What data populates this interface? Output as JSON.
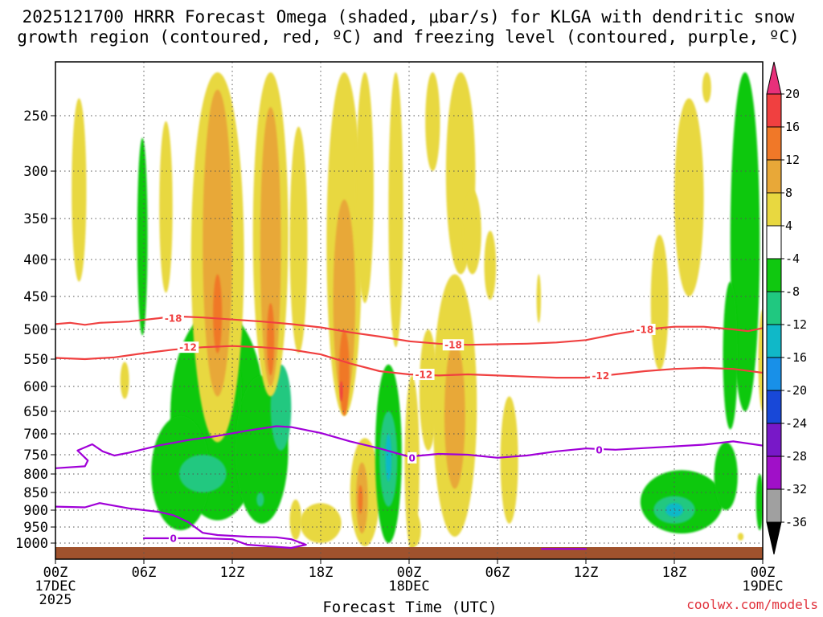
{
  "chart_data": {
    "type": "heatmap",
    "title_line1": "2025121700 HRRR Forecast Omega (shaded, μbar/s) for KLGA with dendritic snow",
    "title_line2": "growth region (contoured, red, ºC) and freezing level (contoured, purple, ºC)",
    "xlabel": "Forecast Time (UTC)",
    "credit": "coolwx.com/models",
    "x_range_hours": [
      0,
      48
    ],
    "y_range_hpa": [
      1030,
      200
    ],
    "x_ticks": [
      {
        "h": 0,
        "l1": "00Z",
        "l2": "17DEC",
        "l3": "2025"
      },
      {
        "h": 6,
        "l1": "06Z",
        "l2": "",
        "l3": ""
      },
      {
        "h": 12,
        "l1": "12Z",
        "l2": "",
        "l3": ""
      },
      {
        "h": 18,
        "l1": "18Z",
        "l2": "",
        "l3": ""
      },
      {
        "h": 24,
        "l1": "00Z",
        "l2": "18DEC",
        "l3": ""
      },
      {
        "h": 30,
        "l1": "06Z",
        "l2": "",
        "l3": ""
      },
      {
        "h": 36,
        "l1": "12Z",
        "l2": "",
        "l3": ""
      },
      {
        "h": 42,
        "l1": "18Z",
        "l2": "",
        "l3": ""
      },
      {
        "h": 48,
        "l1": "00Z",
        "l2": "19DEC",
        "l3": ""
      }
    ],
    "y_ticks": [
      {
        "p": 250,
        "label": "250"
      },
      {
        "p": 300,
        "label": "300"
      },
      {
        "p": 350,
        "label": "350"
      },
      {
        "p": 400,
        "label": "400"
      },
      {
        "p": 450,
        "label": "450"
      },
      {
        "p": 500,
        "label": "500"
      },
      {
        "p": 550,
        "label": "550"
      },
      {
        "p": 600,
        "label": "600"
      },
      {
        "p": 650,
        "label": "650"
      },
      {
        "p": 700,
        "label": "700"
      },
      {
        "p": 750,
        "label": "750"
      },
      {
        "p": 800,
        "label": "800"
      },
      {
        "p": 850,
        "label": "850"
      },
      {
        "p": 900,
        "label": "900"
      },
      {
        "p": 950,
        "label": "950"
      },
      {
        "p": 1000,
        "label": "1000"
      }
    ],
    "colorbar": [
      {
        "label": "20",
        "color": "#e8307a"
      },
      {
        "label": "16",
        "color": "#f04040"
      },
      {
        "label": "12",
        "color": "#f07828"
      },
      {
        "label": "8",
        "color": "#e8a838"
      },
      {
        "label": "4",
        "color": "#e8d840"
      },
      {
        "label": "-4",
        "color": "#ffffff"
      },
      {
        "label": "-8",
        "color": "#10c810"
      },
      {
        "label": "-12",
        "color": "#20c880"
      },
      {
        "label": "-16",
        "color": "#10b8c8"
      },
      {
        "label": "-20",
        "color": "#1890e8"
      },
      {
        "label": "-24",
        "color": "#1848d8"
      },
      {
        "label": "-28",
        "color": "#7818c8"
      },
      {
        "label": "-32",
        "color": "#a010c8"
      },
      {
        "label": "-36",
        "color": "#a0a0a0"
      },
      {
        "label": "",
        "color": "#000000"
      }
    ],
    "contours": [
      {
        "name": "-18C isotherm",
        "value": "-18",
        "color": "#f04040",
        "points": [
          [
            0,
            492
          ],
          [
            1,
            490
          ],
          [
            2,
            493
          ],
          [
            3,
            490
          ],
          [
            5,
            488
          ],
          [
            7,
            483
          ],
          [
            8,
            480
          ],
          [
            10,
            482
          ],
          [
            12,
            485
          ],
          [
            14,
            488
          ],
          [
            16,
            492
          ],
          [
            18,
            497
          ],
          [
            20,
            505
          ],
          [
            22,
            512
          ],
          [
            24,
            520
          ],
          [
            26,
            524
          ],
          [
            28,
            526
          ],
          [
            30,
            525
          ],
          [
            32,
            524
          ],
          [
            34,
            522
          ],
          [
            36,
            518
          ],
          [
            38,
            508
          ],
          [
            40,
            500
          ],
          [
            42,
            496
          ],
          [
            44,
            496
          ],
          [
            46,
            500
          ],
          [
            47,
            503
          ],
          [
            48,
            498
          ]
        ],
        "labels": [
          [
            8,
            483
          ],
          [
            27,
            526
          ],
          [
            40,
            500
          ]
        ]
      },
      {
        "name": "-12C isotherm",
        "value": "-12",
        "color": "#f04040",
        "points": [
          [
            0,
            548
          ],
          [
            2,
            550
          ],
          [
            4,
            547
          ],
          [
            6,
            540
          ],
          [
            8,
            534
          ],
          [
            10,
            530
          ],
          [
            12,
            528
          ],
          [
            14,
            530
          ],
          [
            16,
            534
          ],
          [
            18,
            542
          ],
          [
            20,
            558
          ],
          [
            22,
            572
          ],
          [
            24,
            578
          ],
          [
            26,
            580
          ],
          [
            28,
            578
          ],
          [
            30,
            580
          ],
          [
            32,
            582
          ],
          [
            34,
            584
          ],
          [
            36,
            584
          ],
          [
            38,
            578
          ],
          [
            40,
            572
          ],
          [
            42,
            568
          ],
          [
            44,
            566
          ],
          [
            46,
            568
          ],
          [
            48,
            575
          ]
        ],
        "labels": [
          [
            9,
            530
          ],
          [
            25,
            578
          ],
          [
            37,
            580
          ]
        ]
      },
      {
        "name": "0C freezing level",
        "value": "0",
        "color": "#a000d8",
        "points": [
          [
            0,
            785
          ],
          [
            2,
            780
          ],
          [
            2.2,
            765
          ],
          [
            1.5,
            740
          ],
          [
            2.5,
            725
          ],
          [
            3.2,
            742
          ],
          [
            4,
            752
          ],
          [
            5,
            745
          ],
          [
            7,
            728
          ],
          [
            9,
            715
          ],
          [
            11,
            705
          ],
          [
            13,
            693
          ],
          [
            15,
            683
          ],
          [
            16,
            685
          ],
          [
            18,
            698
          ],
          [
            20,
            718
          ],
          [
            22,
            735
          ],
          [
            24,
            755
          ],
          [
            26,
            748
          ],
          [
            28,
            750
          ],
          [
            30,
            758
          ],
          [
            32,
            752
          ],
          [
            34,
            742
          ],
          [
            36,
            735
          ],
          [
            38,
            738
          ],
          [
            40,
            734
          ],
          [
            42,
            730
          ],
          [
            44,
            726
          ],
          [
            46,
            718
          ],
          [
            48,
            728
          ]
        ],
        "labels": [
          [
            24.2,
            758
          ],
          [
            36.9,
            738
          ]
        ]
      },
      {
        "name": "0C lower branch",
        "value": "0",
        "color": "#a000d8",
        "points": [
          [
            0,
            890
          ],
          [
            2,
            892
          ],
          [
            3,
            880
          ],
          [
            5,
            895
          ],
          [
            7,
            905
          ],
          [
            8,
            915
          ],
          [
            9,
            935
          ],
          [
            10,
            968
          ],
          [
            11,
            975
          ],
          [
            13,
            980
          ],
          [
            15,
            982
          ],
          [
            16,
            988
          ],
          [
            17,
            1005
          ],
          [
            16,
            1015
          ],
          [
            13,
            1005
          ],
          [
            12,
            988
          ],
          [
            10,
            985
          ],
          [
            8,
            985
          ],
          [
            6,
            985
          ]
        ],
        "labels": [
          [
            8,
            985
          ]
        ]
      },
      {
        "name": "0C surface fragment",
        "value": "",
        "color": "#a000d8",
        "points": [
          [
            33,
            1018
          ],
          [
            36,
            1018
          ]
        ],
        "labels": []
      }
    ],
    "omega_blobs": [
      {
        "cls": 4,
        "cx": 1.6,
        "cy": 330,
        "rx": 0.5,
        "ry": 100
      },
      {
        "cls": 4,
        "cx": 4.7,
        "cy": 590,
        "rx": 0.3,
        "ry": 35
      },
      {
        "cls": 4,
        "cx": 7.5,
        "cy": 350,
        "rx": 0.45,
        "ry": 95
      },
      {
        "cls": -4,
        "cx": 5.9,
        "cy": 390,
        "rx": 0.35,
        "ry": 120
      },
      {
        "cls": -4,
        "cx": 11.0,
        "cy": 700,
        "rx": 3.2,
        "ry": 230
      },
      {
        "cls": -4,
        "cx": 8.5,
        "cy": 810,
        "rx": 2.0,
        "ry": 150
      },
      {
        "cls": -4,
        "cx": 14.0,
        "cy": 760,
        "rx": 1.8,
        "ry": 180
      },
      {
        "cls": -4,
        "cx": 12.5,
        "cy": 610,
        "rx": 0.15,
        "ry": 40
      },
      {
        "cls": -8,
        "cx": 10.0,
        "cy": 800,
        "rx": 1.6,
        "ry": 50
      },
      {
        "cls": -8,
        "cx": 15.3,
        "cy": 650,
        "rx": 0.7,
        "ry": 90
      },
      {
        "cls": -8,
        "cx": 13.9,
        "cy": 870,
        "rx": 0.25,
        "ry": 20
      },
      {
        "cls": 4,
        "cx": 11.0,
        "cy": 420,
        "rx": 1.8,
        "ry": 300
      },
      {
        "cls": 8,
        "cx": 11.0,
        "cy": 420,
        "rx": 1.0,
        "ry": 200
      },
      {
        "cls": 12,
        "cx": 11.0,
        "cy": 480,
        "rx": 0.3,
        "ry": 60
      },
      {
        "cls": 4,
        "cx": 14.6,
        "cy": 360,
        "rx": 1.2,
        "ry": 260
      },
      {
        "cls": 8,
        "cx": 14.6,
        "cy": 420,
        "rx": 0.7,
        "ry": 180
      },
      {
        "cls": 12,
        "cx": 14.6,
        "cy": 520,
        "rx": 0.25,
        "ry": 60
      },
      {
        "cls": 4,
        "cx": 16.5,
        "cy": 400,
        "rx": 0.6,
        "ry": 140
      },
      {
        "cls": 4,
        "cx": 19.6,
        "cy": 360,
        "rx": 1.2,
        "ry": 300
      },
      {
        "cls": 8,
        "cx": 19.6,
        "cy": 480,
        "rx": 0.75,
        "ry": 150
      },
      {
        "cls": 12,
        "cx": 19.6,
        "cy": 580,
        "rx": 0.35,
        "ry": 80
      },
      {
        "cls": 16,
        "cx": 19.4,
        "cy": 610,
        "rx": 0.1,
        "ry": 20
      },
      {
        "cls": 4,
        "cx": 21.0,
        "cy": 300,
        "rx": 0.6,
        "ry": 160
      },
      {
        "cls": 4,
        "cx": 21.0,
        "cy": 860,
        "rx": 1.0,
        "ry": 150
      },
      {
        "cls": 8,
        "cx": 20.8,
        "cy": 870,
        "rx": 0.4,
        "ry": 100
      },
      {
        "cls": 12,
        "cx": 20.7,
        "cy": 870,
        "rx": 0.15,
        "ry": 40
      },
      {
        "cls": 4,
        "cx": 23.1,
        "cy": 360,
        "rx": 0.5,
        "ry": 170
      },
      {
        "cls": 4,
        "cx": 18.0,
        "cy": 940,
        "rx": 1.4,
        "ry": 60
      },
      {
        "cls": 4,
        "cx": 16.3,
        "cy": 930,
        "rx": 0.4,
        "ry": 60
      },
      {
        "cls": -4,
        "cx": 22.6,
        "cy": 780,
        "rx": 0.9,
        "ry": 220
      },
      {
        "cls": -8,
        "cx": 22.6,
        "cy": 770,
        "rx": 0.6,
        "ry": 120
      },
      {
        "cls": -12,
        "cx": 22.6,
        "cy": 760,
        "rx": 0.2,
        "ry": 60
      },
      {
        "cls": 4,
        "cx": 24.2,
        "cy": 810,
        "rx": 0.5,
        "ry": 230
      },
      {
        "cls": 4,
        "cx": 24.4,
        "cy": 960,
        "rx": 0.4,
        "ry": 50
      },
      {
        "cls": 4,
        "cx": 25.3,
        "cy": 620,
        "rx": 0.6,
        "ry": 120
      },
      {
        "cls": 4,
        "cx": 27.1,
        "cy": 700,
        "rx": 1.5,
        "ry": 280
      },
      {
        "cls": 8,
        "cx": 27.1,
        "cy": 680,
        "rx": 0.7,
        "ry": 160
      },
      {
        "cls": 4,
        "cx": 27.5,
        "cy": 300,
        "rx": 1.0,
        "ry": 120
      },
      {
        "cls": 4,
        "cx": 25.6,
        "cy": 240,
        "rx": 0.5,
        "ry": 60
      },
      {
        "cls": 4,
        "cx": 28.3,
        "cy": 370,
        "rx": 0.6,
        "ry": 50
      },
      {
        "cls": 4,
        "cx": 29.5,
        "cy": 410,
        "rx": 0.4,
        "ry": 45
      },
      {
        "cls": 4,
        "cx": 30.8,
        "cy": 780,
        "rx": 0.6,
        "ry": 160
      },
      {
        "cls": 4,
        "cx": 32.8,
        "cy": 455,
        "rx": 0.15,
        "ry": 35
      },
      {
        "cls": 4,
        "cx": 43.0,
        "cy": 340,
        "rx": 1.0,
        "ry": 110
      },
      {
        "cls": 4,
        "cx": 44.2,
        "cy": 195,
        "rx": 0.3,
        "ry": 40
      },
      {
        "cls": 4,
        "cx": 41.0,
        "cy": 470,
        "rx": 0.6,
        "ry": 100
      },
      {
        "cls": -4,
        "cx": 46.8,
        "cy": 380,
        "rx": 1.0,
        "ry": 270
      },
      {
        "cls": -4,
        "cx": 45.8,
        "cy": 560,
        "rx": 0.5,
        "ry": 130
      },
      {
        "cls": 4,
        "cx": 48.0,
        "cy": 560,
        "rx": 0.3,
        "ry": 90
      },
      {
        "cls": -4,
        "cx": 42.5,
        "cy": 880,
        "rx": 2.8,
        "ry": 90
      },
      {
        "cls": -4,
        "cx": 45.5,
        "cy": 810,
        "rx": 0.8,
        "ry": 90
      },
      {
        "cls": -8,
        "cx": 42.0,
        "cy": 900,
        "rx": 1.4,
        "ry": 40
      },
      {
        "cls": -12,
        "cx": 42.0,
        "cy": 900,
        "rx": 0.6,
        "ry": 20
      },
      {
        "cls": -4,
        "cx": 47.8,
        "cy": 880,
        "rx": 0.25,
        "ry": 80
      },
      {
        "cls": 4,
        "cx": 46.5,
        "cy": 980,
        "rx": 0.2,
        "ry": 12
      }
    ]
  }
}
